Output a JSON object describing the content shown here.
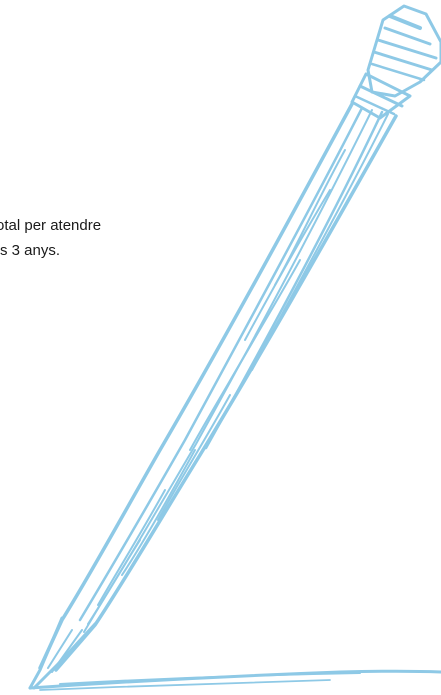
{
  "text": {
    "line1": "otal per atendre",
    "line2": "s 3 anys."
  },
  "colors": {
    "illustration": "#8ec9e6",
    "text": "#1a1a1a"
  },
  "icons": {
    "illustration": "pencil-illustration-icon"
  }
}
